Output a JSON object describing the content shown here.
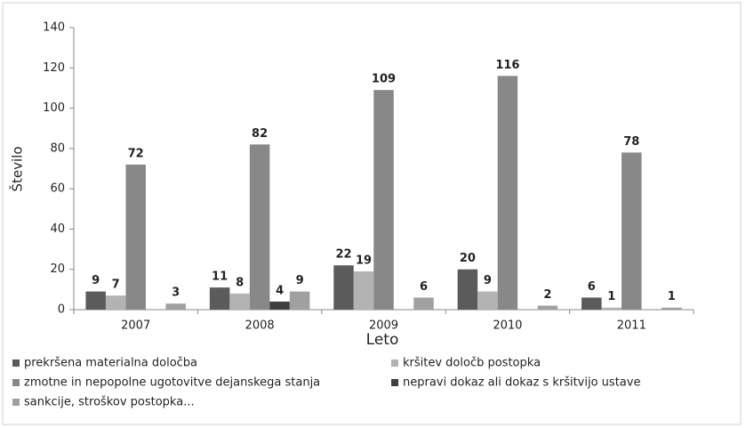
{
  "chart_data": {
    "type": "bar",
    "x_label": "Leto",
    "y_label": "Število",
    "categories": [
      "2007",
      "2008",
      "2009",
      "2010",
      "2011"
    ],
    "series": [
      {
        "name": "prekršena materialna določba",
        "color": "#5b5b5b",
        "values": [
          9,
          11,
          22,
          20,
          6
        ]
      },
      {
        "name": "kršitev določb postopka",
        "color": "#b3b3b3",
        "values": [
          7,
          8,
          19,
          9,
          1
        ]
      },
      {
        "name": "zmotne in nepopolne ugotovitve dejanskega stanja",
        "color": "#888888",
        "values": [
          72,
          82,
          109,
          116,
          78
        ]
      },
      {
        "name": "nepravi dokaz ali dokaz s kršitvijo ustave",
        "color": "#3f3f3f",
        "values": [
          null,
          4,
          null,
          null,
          null
        ]
      },
      {
        "name": "sankcije, stroškov postopka...",
        "color": "#a0a0a0",
        "values": [
          3,
          9,
          6,
          2,
          1
        ]
      }
    ],
    "ylim": [
      0,
      140
    ],
    "yticks": [
      0,
      20,
      40,
      60,
      80,
      100,
      120,
      140
    ]
  }
}
